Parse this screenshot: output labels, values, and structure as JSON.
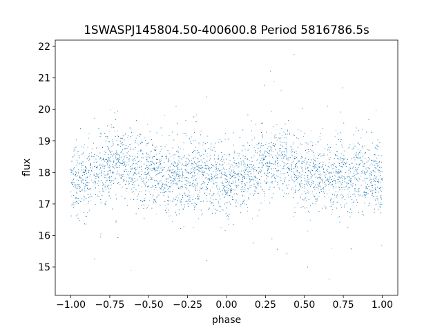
{
  "chart_data": {
    "type": "scatter",
    "title": "1SWASPJ145804.50-400600.8 Period 5816786.5s",
    "xlabel": "phase",
    "ylabel": "flux",
    "xlim": [
      -1.1,
      1.1
    ],
    "ylim": [
      14.1,
      22.2
    ],
    "xticks": [
      -1.0,
      -0.75,
      -0.5,
      -0.25,
      0.0,
      0.25,
      0.5,
      0.75,
      1.0
    ],
    "xtick_labels": [
      "−1.00",
      "−0.75",
      "−0.50",
      "−0.25",
      "0.00",
      "0.25",
      "0.50",
      "0.75",
      "1.00"
    ],
    "yticks": [
      15,
      16,
      17,
      18,
      19,
      20,
      21,
      22
    ],
    "ytick_labels": [
      "15",
      "16",
      "17",
      "18",
      "19",
      "20",
      "21",
      "22"
    ],
    "grid": false,
    "legend": "none",
    "marker_color": "#1f77b4",
    "phase_profile": {
      "x": [
        0.0,
        0.1,
        0.2,
        0.3,
        0.4,
        0.5,
        0.6,
        0.7,
        0.8,
        0.9,
        1.0
      ],
      "y": [
        17.7,
        17.8,
        18.1,
        18.4,
        18.3,
        18.0,
        17.9,
        17.8,
        18.0,
        17.9,
        17.7
      ]
    },
    "scatter_sigma": 0.55,
    "point_count": 9000
  }
}
